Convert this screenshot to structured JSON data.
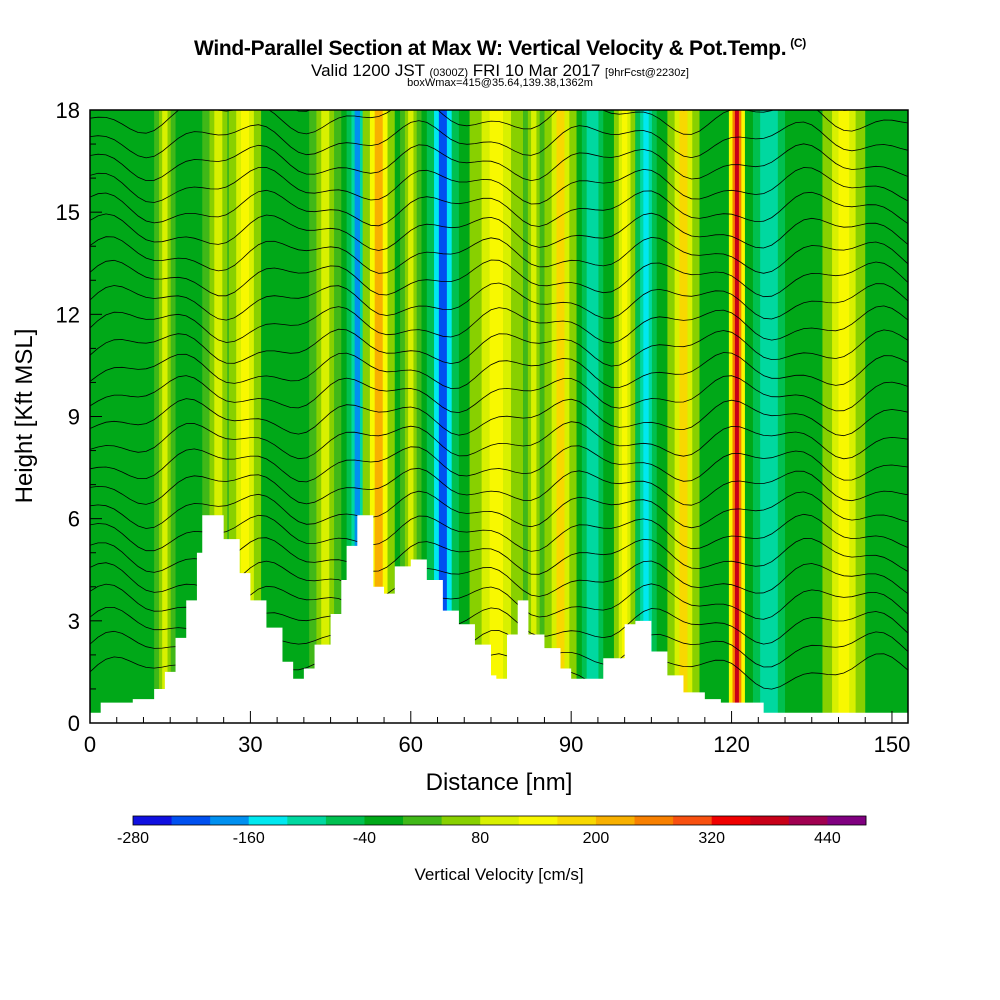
{
  "title": {
    "main": "Wind-Parallel Section at Max W: Vertical Velocity & Pot.Temp.",
    "copyright": "(C)",
    "valid_prefix": "Valid 1200 JST",
    "valid_utc": "(0300Z)",
    "valid_date": "FRI 10 Mar 2017",
    "forecast": "[9hrFcst@2230z]",
    "box": "boxWmax=415@35.64,139.38,1362m"
  },
  "chart_data": {
    "type": "heatmap",
    "xlabel": "Distance [nm]",
    "ylabel": "Height [Kft MSL]",
    "xlim": [
      0,
      153
    ],
    "ylim": [
      0,
      18
    ],
    "x_ticks": [
      0,
      30,
      60,
      90,
      120,
      150
    ],
    "y_ticks": [
      0,
      3,
      6,
      9,
      12,
      15,
      18
    ],
    "colorbar": {
      "label": "Vertical Velocity [cm/s]",
      "tick_labels": [
        "-280",
        "-160",
        "-40",
        "80",
        "200",
        "320",
        "440"
      ],
      "tick_values": [
        -280,
        -160,
        -40,
        80,
        200,
        320,
        440
      ],
      "levels": [
        -280,
        -240,
        -200,
        -160,
        -120,
        -80,
        -40,
        0,
        40,
        80,
        120,
        160,
        200,
        240,
        280,
        320,
        360,
        400,
        440,
        480
      ],
      "colors": [
        "#1010e0",
        "#0050f0",
        "#0090f0",
        "#00e8f0",
        "#00d8a0",
        "#00c050",
        "#00a818",
        "#40b818",
        "#88d000",
        "#d8f000",
        "#f8f800",
        "#f8d800",
        "#f8b000",
        "#f88000",
        "#f85010",
        "#f00000",
        "#c80018",
        "#a00050",
        "#800080"
      ]
    },
    "terrain_kft": [
      {
        "x": 0,
        "y": 0.3
      },
      {
        "x": 2,
        "y": 0.6
      },
      {
        "x": 8,
        "y": 0.7
      },
      {
        "x": 12,
        "y": 1.0
      },
      {
        "x": 14,
        "y": 1.5
      },
      {
        "x": 16,
        "y": 2.5
      },
      {
        "x": 18,
        "y": 3.6
      },
      {
        "x": 20,
        "y": 5.0
      },
      {
        "x": 21,
        "y": 6.1
      },
      {
        "x": 23,
        "y": 6.1
      },
      {
        "x": 25,
        "y": 5.4
      },
      {
        "x": 28,
        "y": 4.4
      },
      {
        "x": 30,
        "y": 3.6
      },
      {
        "x": 33,
        "y": 2.8
      },
      {
        "x": 36,
        "y": 1.8
      },
      {
        "x": 38,
        "y": 1.3
      },
      {
        "x": 40,
        "y": 1.6
      },
      {
        "x": 42,
        "y": 2.3
      },
      {
        "x": 45,
        "y": 3.2
      },
      {
        "x": 47,
        "y": 4.2
      },
      {
        "x": 48,
        "y": 5.2
      },
      {
        "x": 50,
        "y": 6.1
      },
      {
        "x": 51,
        "y": 6.1
      },
      {
        "x": 53,
        "y": 4.0
      },
      {
        "x": 55,
        "y": 3.8
      },
      {
        "x": 57,
        "y": 4.6
      },
      {
        "x": 60,
        "y": 4.8
      },
      {
        "x": 63,
        "y": 4.2
      },
      {
        "x": 66,
        "y": 3.3
      },
      {
        "x": 69,
        "y": 2.9
      },
      {
        "x": 72,
        "y": 2.3
      },
      {
        "x": 75,
        "y": 1.4
      },
      {
        "x": 76,
        "y": 1.3
      },
      {
        "x": 78,
        "y": 2.6
      },
      {
        "x": 80,
        "y": 3.6
      },
      {
        "x": 82,
        "y": 2.6
      },
      {
        "x": 85,
        "y": 2.2
      },
      {
        "x": 88,
        "y": 1.6
      },
      {
        "x": 90,
        "y": 1.3
      },
      {
        "x": 93,
        "y": 1.3
      },
      {
        "x": 96,
        "y": 1.9
      },
      {
        "x": 100,
        "y": 2.9
      },
      {
        "x": 102,
        "y": 3.0
      },
      {
        "x": 105,
        "y": 2.1
      },
      {
        "x": 108,
        "y": 1.4
      },
      {
        "x": 111,
        "y": 0.9
      },
      {
        "x": 115,
        "y": 0.7
      },
      {
        "x": 118,
        "y": 0.6
      },
      {
        "x": 124,
        "y": 0.6
      },
      {
        "x": 126,
        "y": 0.3
      },
      {
        "x": 153,
        "y": 0.3
      }
    ],
    "wind_bands": [
      {
        "x": 14,
        "w": 2,
        "value": 100
      },
      {
        "x": 24,
        "w": 3,
        "value": 90
      },
      {
        "x": 29,
        "w": 3,
        "value": 130
      },
      {
        "x": 44,
        "w": 3,
        "value": 110
      },
      {
        "x": 50,
        "w": 2,
        "value": -170
      },
      {
        "x": 54,
        "w": 3,
        "value": 200
      },
      {
        "x": 60,
        "w": 2,
        "value": 80
      },
      {
        "x": 66,
        "w": 3,
        "value": -220
      },
      {
        "x": 76,
        "w": 5,
        "value": 150
      },
      {
        "x": 83,
        "w": 2,
        "value": 100
      },
      {
        "x": 88,
        "w": 3,
        "value": 160
      },
      {
        "x": 94,
        "w": 2,
        "value": -120
      },
      {
        "x": 100,
        "w": 2,
        "value": 120
      },
      {
        "x": 104,
        "w": 2,
        "value": -150
      },
      {
        "x": 111,
        "w": 3,
        "value": 170
      },
      {
        "x": 121,
        "w": 1.5,
        "value": 360
      },
      {
        "x": 127,
        "w": 3,
        "value": -120
      },
      {
        "x": 141,
        "w": 4,
        "value": 150
      }
    ]
  }
}
